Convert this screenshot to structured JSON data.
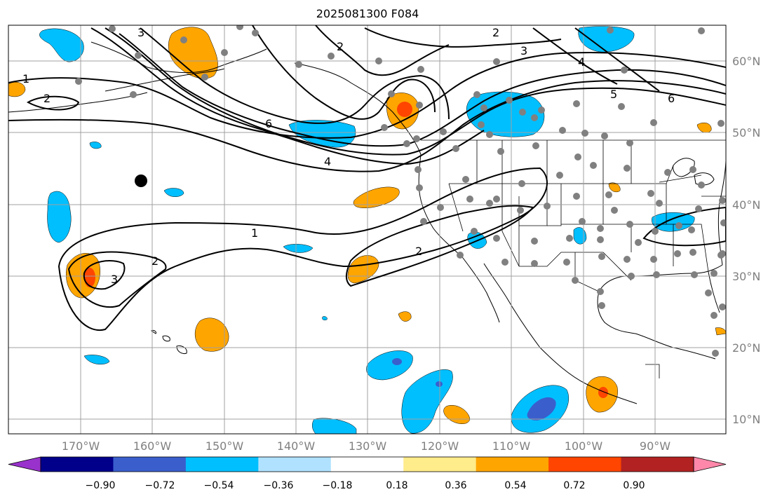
{
  "title": "2025081300 F084",
  "lat_labels": [
    "60°N",
    "50°N",
    "40°N",
    "30°N",
    "20°N",
    "10°N"
  ],
  "lon_labels": [
    "170°W",
    "160°W",
    "150°W",
    "140°W",
    "130°W",
    "120°W",
    "110°W",
    "100°W",
    "90°W"
  ],
  "colorbar": {
    "labels": [
      "−0.90",
      "−0.72",
      "−0.54",
      "−0.36",
      "−0.18",
      "0.18",
      "0.36",
      "0.54",
      "0.72",
      "0.90"
    ],
    "colors": [
      "#9932cc",
      "#00008b",
      "#3a5fcd",
      "#00bfff",
      "#b0e2ff",
      "#ffffff",
      "#ffec8b",
      "#ffa500",
      "#ff4500",
      "#b22222",
      "#ff88aa"
    ]
  },
  "contour_labels": [
    "1",
    "2",
    "3",
    "2",
    "6",
    "4",
    "2",
    "3",
    "4",
    "5",
    "6",
    "1",
    "2",
    "2",
    "3"
  ],
  "colors": {
    "contour": "#000000",
    "grid": "#a0a0a0",
    "station": "#808080",
    "coast": "#000000"
  }
}
